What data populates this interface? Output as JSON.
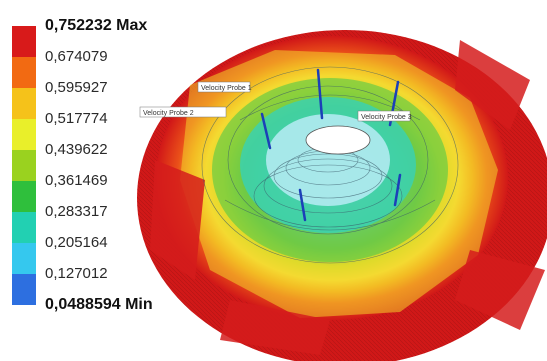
{
  "legend": {
    "ticks": [
      {
        "label": "0,752232 Max",
        "color": "#d81a1a"
      },
      {
        "label": "0,674079",
        "color": "#f26a12"
      },
      {
        "label": "0,595927",
        "color": "#f5c21a"
      },
      {
        "label": "0,517774",
        "color": "#e9ef2a"
      },
      {
        "label": "0,439622",
        "color": "#9ad21f"
      },
      {
        "label": "0,361469",
        "color": "#2fbf3c"
      },
      {
        "label": "0,283317",
        "color": "#22d0b2"
      },
      {
        "label": "0,205164",
        "color": "#35c8ee"
      },
      {
        "label": "0,127012",
        "color": "#2d6fe0"
      },
      {
        "label": "0,0488594 Min",
        "color": "#1a1ae0"
      }
    ]
  },
  "probes": {
    "probe_1": "Velocity Probe 1",
    "probe_2": "Velocity Probe 2",
    "probe_3": "Velocity Probe 3"
  }
}
